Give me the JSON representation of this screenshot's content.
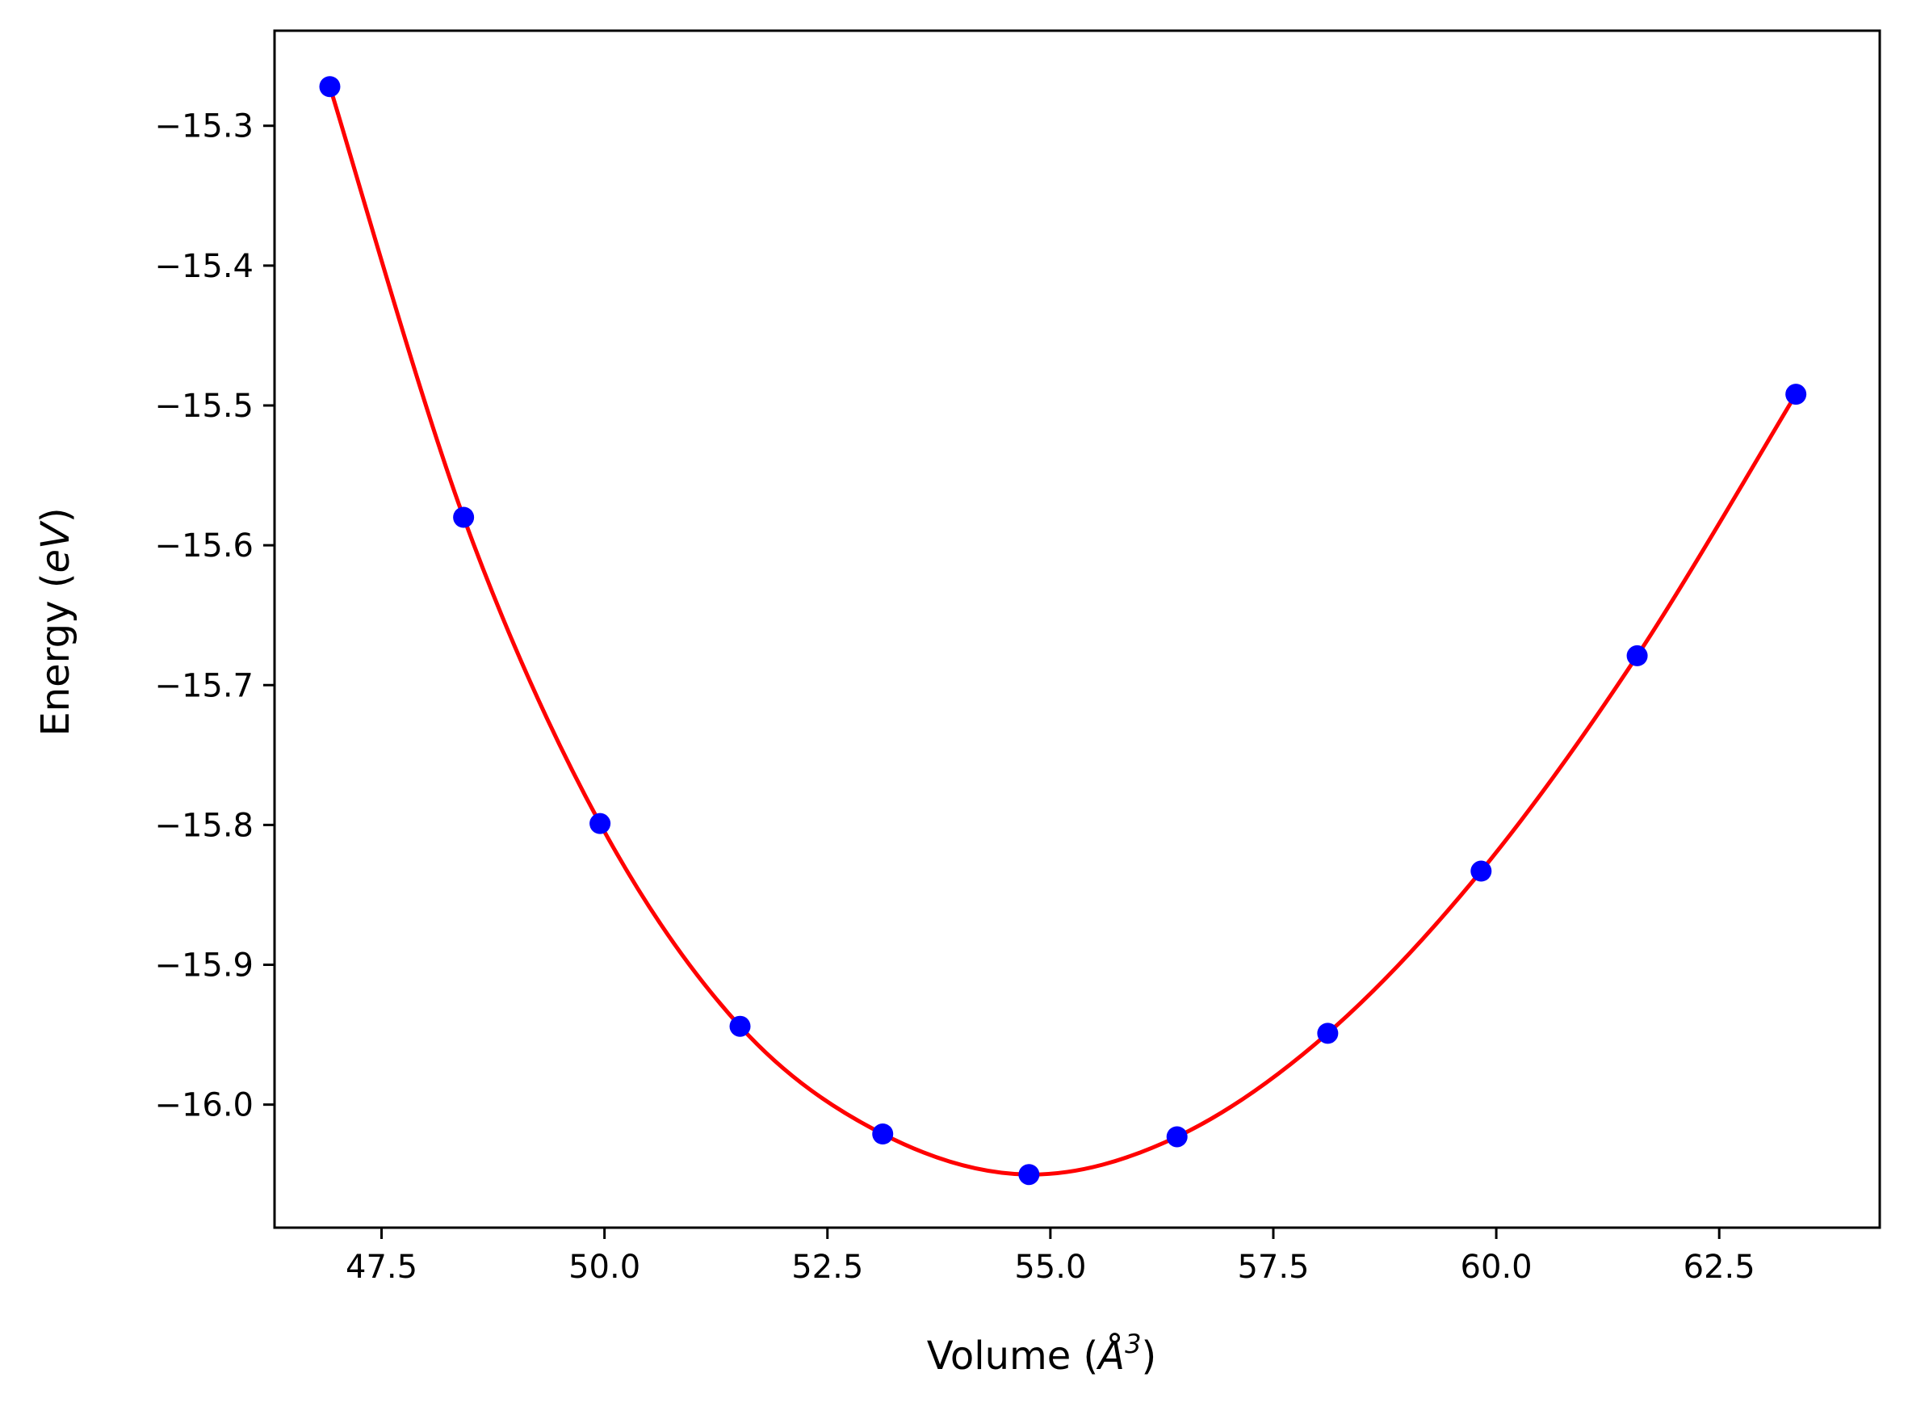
{
  "chart_data": {
    "type": "scatter",
    "title": "",
    "xlabel": {
      "main": "Volume (",
      "unit": "Å",
      "sup": "3",
      "close": ")"
    },
    "ylabel": {
      "main": "Energy (",
      "unit": "eV",
      "close": ")"
    },
    "xlim": [
      46.3,
      64.3
    ],
    "ylim": [
      -16.088,
      -15.232
    ],
    "xticks": [
      47.5,
      50.0,
      52.5,
      55.0,
      57.5,
      60.0,
      62.5
    ],
    "xtick_labels": [
      "47.5",
      "50.0",
      "52.5",
      "55.0",
      "57.5",
      "60.0",
      "62.5"
    ],
    "yticks": [
      -16.0,
      -15.9,
      -15.8,
      -15.7,
      -15.6,
      -15.5,
      -15.4,
      -15.3
    ],
    "ytick_labels": [
      "−16.0",
      "−15.9",
      "−15.8",
      "−15.7",
      "−15.6",
      "−15.5",
      "−15.4",
      "−15.3"
    ],
    "grid": false,
    "series": [
      {
        "kind": "points",
        "color": "#0000ff",
        "x": [
          46.92,
          48.42,
          49.95,
          51.52,
          53.12,
          54.76,
          56.42,
          58.11,
          59.83,
          61.58,
          63.36
        ],
        "y": [
          -15.272,
          -15.58,
          -15.799,
          -15.944,
          -16.021,
          -16.05,
          -16.023,
          -15.949,
          -15.833,
          -15.679,
          -15.492
        ]
      },
      {
        "kind": "fit-curve",
        "color": "#ff0000",
        "x": [
          46.92,
          48.42,
          49.95,
          51.52,
          53.12,
          54.76,
          56.42,
          58.11,
          59.83,
          61.58,
          63.36
        ],
        "y": [
          -15.272,
          -15.58,
          -15.799,
          -15.944,
          -16.021,
          -16.05,
          -16.023,
          -15.949,
          -15.833,
          -15.679,
          -15.492
        ]
      }
    ]
  }
}
